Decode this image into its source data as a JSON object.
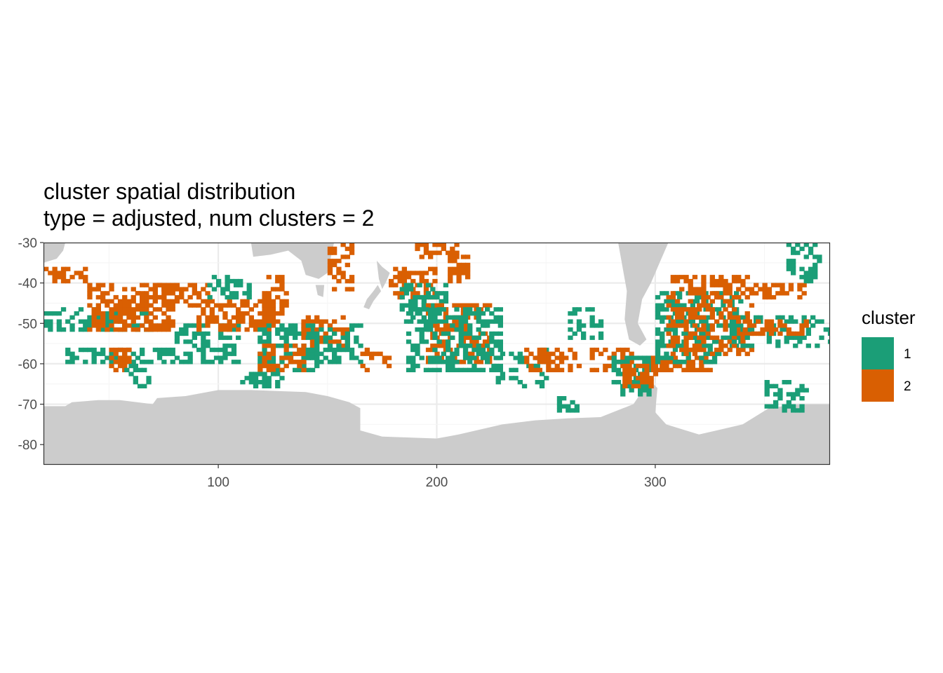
{
  "chart_data": {
    "type": "heatmap",
    "title": "cluster spatial distribution",
    "subtitle": "type = adjusted, num clusters = 2",
    "xlabel": "",
    "ylabel": "",
    "xlim": [
      20,
      380
    ],
    "ylim": [
      -85,
      -30
    ],
    "x_ticks": [
      100,
      200,
      300
    ],
    "y_ticks": [
      -30,
      -40,
      -50,
      -60,
      -70,
      -80
    ],
    "grid": true,
    "legend": {
      "title": "cluster",
      "placement": "right",
      "entries": [
        {
          "label": "1",
          "color": "#1B9E77"
        },
        {
          "label": "2",
          "color": "#D95F02"
        }
      ]
    },
    "colors": {
      "land": "#CCCCCC",
      "grid_major": "#EBEBEB",
      "grid_minor": "#F5F5F5",
      "panel_border": "#333333"
    },
    "cell_size_deg": [
      2,
      1
    ],
    "regions": [
      {
        "cluster": 2,
        "lon": [
          20,
          40
        ],
        "lat": [
          -40,
          -36
        ],
        "density": 0.5
      },
      {
        "cluster": 1,
        "lon": [
          20,
          70
        ],
        "lat": [
          -52,
          -46
        ],
        "density": 0.45
      },
      {
        "cluster": 2,
        "lon": [
          40,
          80
        ],
        "lat": [
          -52,
          -40
        ],
        "density": 0.5
      },
      {
        "cluster": 1,
        "lon": [
          30,
          80
        ],
        "lat": [
          -60,
          -56
        ],
        "density": 0.55
      },
      {
        "cluster": 2,
        "lon": [
          50,
          60
        ],
        "lat": [
          -62,
          -56
        ],
        "density": 0.6
      },
      {
        "cluster": 1,
        "lon": [
          55,
          70
        ],
        "lat": [
          -66,
          -60
        ],
        "density": 0.4
      },
      {
        "cluster": 2,
        "lon": [
          60,
          95
        ],
        "lat": [
          -46,
          -40
        ],
        "density": 0.45
      },
      {
        "cluster": 1,
        "lon": [
          80,
          110
        ],
        "lat": [
          -60,
          -50
        ],
        "density": 0.45
      },
      {
        "cluster": 2,
        "lon": [
          90,
          125
        ],
        "lat": [
          -52,
          -44
        ],
        "density": 0.5
      },
      {
        "cluster": 1,
        "lon": [
          95,
          115
        ],
        "lat": [
          -44,
          -38
        ],
        "density": 0.5
      },
      {
        "cluster": 2,
        "lon": [
          120,
          132
        ],
        "lat": [
          -50,
          -38
        ],
        "density": 0.45
      },
      {
        "cluster": 1,
        "lon": [
          118,
          145
        ],
        "lat": [
          -62,
          -50
        ],
        "density": 0.5
      },
      {
        "cluster": 2,
        "lon": [
          118,
          140
        ],
        "lat": [
          -62,
          -55
        ],
        "density": 0.55
      },
      {
        "cluster": 1,
        "lon": [
          110,
          130
        ],
        "lat": [
          -66,
          -62
        ],
        "density": 0.6
      },
      {
        "cluster": 2,
        "lon": [
          138,
          160
        ],
        "lat": [
          -56,
          -48
        ],
        "density": 0.5
      },
      {
        "cluster": 1,
        "lon": [
          140,
          165
        ],
        "lat": [
          -60,
          -50
        ],
        "density": 0.4
      },
      {
        "cluster": 2,
        "lon": [
          150,
          162
        ],
        "lat": [
          -42,
          -30
        ],
        "density": 0.45
      },
      {
        "cluster": 2,
        "lon": [
          165,
          178
        ],
        "lat": [
          -62,
          -56
        ],
        "density": 0.4
      },
      {
        "cluster": 2,
        "lon": [
          178,
          200
        ],
        "lat": [
          -44,
          -36
        ],
        "density": 0.45
      },
      {
        "cluster": 1,
        "lon": [
          183,
          205
        ],
        "lat": [
          -50,
          -40
        ],
        "density": 0.55
      },
      {
        "cluster": 2,
        "lon": [
          190,
          210
        ],
        "lat": [
          -34,
          -30
        ],
        "density": 0.5
      },
      {
        "cluster": 2,
        "lon": [
          205,
          215
        ],
        "lat": [
          -40,
          -33
        ],
        "density": 0.55
      },
      {
        "cluster": 2,
        "lon": [
          195,
          225
        ],
        "lat": [
          -60,
          -45
        ],
        "density": 0.5
      },
      {
        "cluster": 1,
        "lon": [
          186,
          230
        ],
        "lat": [
          -62,
          -46
        ],
        "density": 0.45
      },
      {
        "cluster": 1,
        "lon": [
          225,
          250
        ],
        "lat": [
          -66,
          -56
        ],
        "density": 0.35
      },
      {
        "cluster": 2,
        "lon": [
          240,
          265
        ],
        "lat": [
          -62,
          -56
        ],
        "density": 0.45
      },
      {
        "cluster": 1,
        "lon": [
          255,
          265
        ],
        "lat": [
          -72,
          -68
        ],
        "density": 0.5
      },
      {
        "cluster": 1,
        "lon": [
          260,
          275
        ],
        "lat": [
          -54,
          -46
        ],
        "density": 0.45
      },
      {
        "cluster": 2,
        "lon": [
          270,
          290
        ],
        "lat": [
          -62,
          -56
        ],
        "density": 0.5
      },
      {
        "cluster": 1,
        "lon": [
          280,
          298
        ],
        "lat": [
          -68,
          -58
        ],
        "density": 0.5
      },
      {
        "cluster": 2,
        "lon": [
          285,
          300
        ],
        "lat": [
          -66,
          -60
        ],
        "density": 0.55
      },
      {
        "cluster": 2,
        "lon": [
          298,
          325
        ],
        "lat": [
          -62,
          -58
        ],
        "density": 0.65
      },
      {
        "cluster": 1,
        "lon": [
          300,
          330
        ],
        "lat": [
          -60,
          -55
        ],
        "density": 0.55
      },
      {
        "cluster": 1,
        "lon": [
          300,
          340
        ],
        "lat": [
          -56,
          -42
        ],
        "density": 0.45
      },
      {
        "cluster": 2,
        "lon": [
          305,
          345
        ],
        "lat": [
          -58,
          -38
        ],
        "density": 0.45
      },
      {
        "cluster": 1,
        "lon": [
          335,
          380
        ],
        "lat": [
          -56,
          -48
        ],
        "density": 0.4
      },
      {
        "cluster": 2,
        "lon": [
          340,
          370
        ],
        "lat": [
          -53,
          -49
        ],
        "density": 0.5
      },
      {
        "cluster": 2,
        "lon": [
          345,
          368
        ],
        "lat": [
          -44,
          -40
        ],
        "density": 0.6
      },
      {
        "cluster": 1,
        "lon": [
          360,
          375
        ],
        "lat": [
          -40,
          -30
        ],
        "density": 0.45
      },
      {
        "cluster": 1,
        "lon": [
          350,
          370
        ],
        "lat": [
          -72,
          -64
        ],
        "density": 0.35
      }
    ]
  }
}
